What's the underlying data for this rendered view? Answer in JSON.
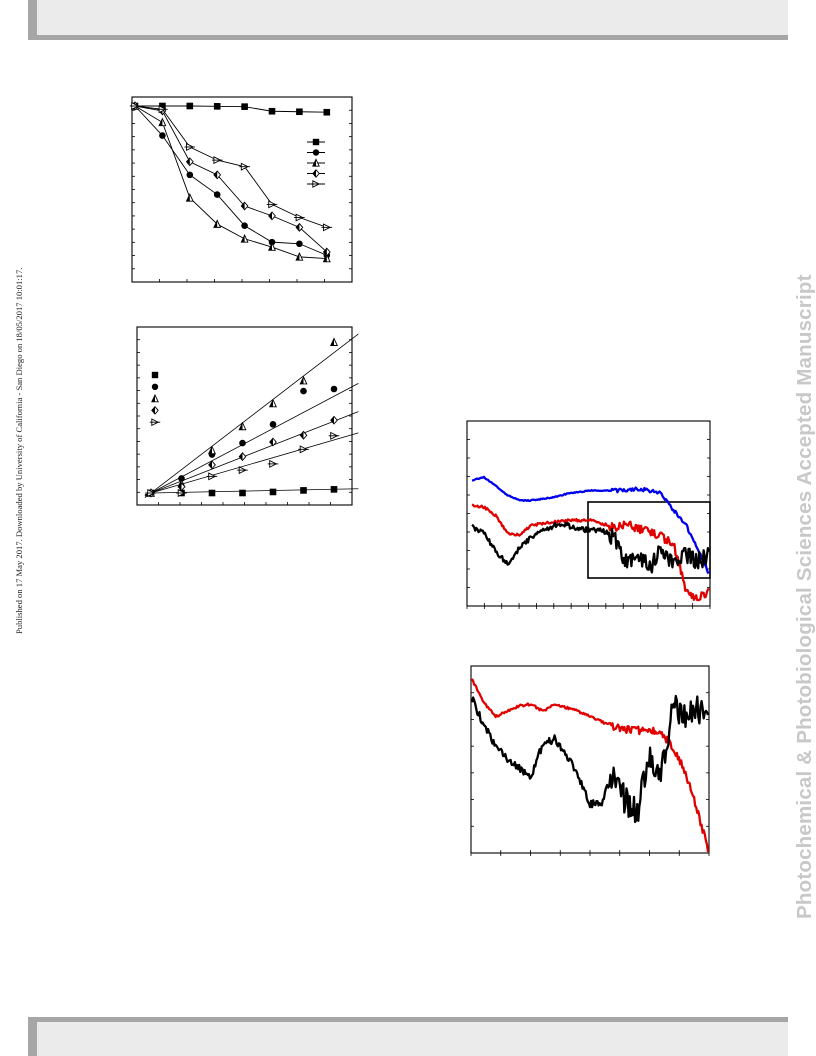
{
  "page": {
    "side_note": "Published on 17 May 2017. Downloaded by University of California - San Diego on 18/05/2017 10:01:17.",
    "watermark": "Photochemical & Photobiological Sciences Accepted Manuscript"
  },
  "colors": {
    "black": "#000000",
    "red": "#e00000",
    "blue": "#0000ee",
    "band": "#ebebeb",
    "band_edge": "#a6a6a6",
    "watermark": "#c8c8c8"
  },
  "legend_markers": [
    "square-filled",
    "circle-filled",
    "triangle-half",
    "diamond-half",
    "triangle-right-open"
  ],
  "chart_data": [
    {
      "type": "line",
      "title": "",
      "xlabel": "",
      "ylabel": "",
      "x": [
        0,
        1,
        2,
        3,
        4,
        5,
        6,
        7
      ],
      "grid": false,
      "legend_position": "top-right",
      "series": [
        {
          "marker": "square-filled",
          "values": [
            1.0,
            1.0,
            1.0,
            0.998,
            0.996,
            0.968,
            0.965,
            0.962
          ]
        },
        {
          "marker": "circle-filled",
          "values": [
            1.0,
            0.82,
            0.58,
            0.46,
            0.27,
            0.17,
            0.16,
            0.09
          ]
        },
        {
          "marker": "triangle-half",
          "values": [
            1.0,
            0.9,
            0.44,
            0.28,
            0.19,
            0.14,
            0.08,
            0.07
          ]
        },
        {
          "marker": "diamond-half",
          "values": [
            1.0,
            0.97,
            0.66,
            0.58,
            0.39,
            0.33,
            0.26,
            0.11
          ]
        },
        {
          "marker": "triangle-right-open",
          "values": [
            1.0,
            0.98,
            0.75,
            0.67,
            0.63,
            0.4,
            0.32,
            0.26
          ]
        }
      ]
    },
    {
      "type": "scatter",
      "title": "",
      "xlabel": "",
      "ylabel": "",
      "x": [
        0,
        1,
        2,
        3,
        4,
        5,
        6
      ],
      "grid": false,
      "legend_position": "top-left",
      "series": [
        {
          "marker": "square-filled",
          "values": [
            0.0,
            0.0,
            0.0,
            0.0,
            0.02,
            0.05,
            0.07
          ],
          "fit_slope": 0.012
        },
        {
          "marker": "circle-filled",
          "values": [
            0.0,
            0.28,
            0.74,
            0.96,
            1.32,
            1.96,
            2.0
          ],
          "fit_slope": 0.31
        },
        {
          "marker": "triangle-half",
          "values": [
            0.0,
            0.18,
            0.82,
            1.28,
            1.72,
            2.16,
            2.9
          ],
          "fit_slope": 0.45
        },
        {
          "marker": "diamond-half",
          "values": [
            0.0,
            0.12,
            0.54,
            0.7,
            0.98,
            1.11,
            1.4
          ],
          "fit_slope": 0.23
        },
        {
          "marker": "triangle-right-open",
          "values": [
            0.0,
            0.0,
            0.32,
            0.44,
            0.56,
            0.84,
            1.1
          ],
          "fit_slope": 0.17
        }
      ]
    },
    {
      "type": "line",
      "title": "",
      "xlabel": "",
      "ylabel": "",
      "grid": false,
      "inset_box": true,
      "series": [
        {
          "color": "blue",
          "values": [
            0.72,
            0.74,
            0.69,
            0.63,
            0.6,
            0.6,
            0.61,
            0.62,
            0.64,
            0.65,
            0.66,
            0.66,
            0.66,
            0.66,
            0.67,
            0.66,
            0.64,
            0.54,
            0.46,
            0.31,
            0.16
          ]
        },
        {
          "color": "red",
          "values": [
            0.57,
            0.56,
            0.51,
            0.4,
            0.39,
            0.45,
            0.46,
            0.47,
            0.48,
            0.48,
            0.48,
            0.46,
            0.44,
            0.46,
            0.43,
            0.42,
            0.38,
            0.34,
            0.07,
            0.0,
            0.06
          ]
        },
        {
          "color": "black",
          "values": [
            0.44,
            0.41,
            0.29,
            0.22,
            0.31,
            0.38,
            0.42,
            0.45,
            0.45,
            0.43,
            0.42,
            0.42,
            0.38,
            0.23,
            0.28,
            0.2,
            0.31,
            0.2,
            0.28,
            0.23,
            0.27
          ]
        }
      ]
    },
    {
      "type": "line",
      "title": "",
      "xlabel": "",
      "ylabel": "",
      "grid": false,
      "series": [
        {
          "color": "red",
          "values": [
            0.98,
            0.85,
            0.77,
            0.8,
            0.83,
            0.84,
            0.8,
            0.84,
            0.82,
            0.8,
            0.77,
            0.74,
            0.71,
            0.7,
            0.69,
            0.7,
            0.68,
            0.6,
            0.46,
            0.26,
            0.01
          ]
        },
        {
          "color": "black",
          "values": [
            0.87,
            0.72,
            0.6,
            0.52,
            0.48,
            0.42,
            0.62,
            0.64,
            0.55,
            0.44,
            0.27,
            0.28,
            0.46,
            0.29,
            0.23,
            0.54,
            0.42,
            0.82,
            0.77,
            0.83,
            0.74
          ]
        }
      ]
    }
  ]
}
